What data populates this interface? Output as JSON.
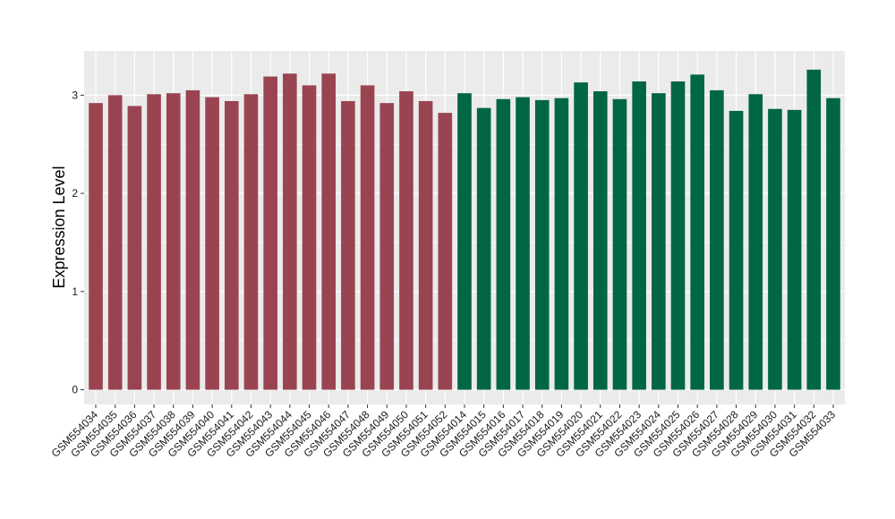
{
  "chart_data": {
    "type": "bar",
    "title": "",
    "xlabel": "",
    "ylabel": "Expression Level",
    "ylim": [
      -0.15,
      3.45
    ],
    "yticks": [
      0,
      1,
      2,
      3
    ],
    "grid": true,
    "legend": "none",
    "panel_background": "#ebebeb",
    "grid_color": "#ffffff",
    "categories": [
      "GSM554034",
      "GSM554035",
      "GSM554036",
      "GSM554037",
      "GSM554038",
      "GSM554039",
      "GSM554040",
      "GSM554041",
      "GSM554042",
      "GSM554043",
      "GSM554044",
      "GSM554045",
      "GSM554046",
      "GSM554047",
      "GSM554048",
      "GSM554049",
      "GSM554050",
      "GSM554051",
      "GSM554052",
      "GSM554014",
      "GSM554015",
      "GSM554016",
      "GSM554017",
      "GSM554018",
      "GSM554019",
      "GSM554020",
      "GSM554021",
      "GSM554022",
      "GSM554023",
      "GSM554024",
      "GSM554025",
      "GSM554026",
      "GSM554027",
      "GSM554028",
      "GSM554029",
      "GSM554030",
      "GSM554031",
      "GSM554032",
      "GSM554033"
    ],
    "values": [
      2.92,
      3.0,
      2.89,
      3.01,
      3.02,
      3.05,
      2.98,
      2.94,
      3.01,
      3.19,
      3.22,
      3.1,
      3.22,
      2.94,
      3.1,
      2.92,
      3.04,
      2.94,
      2.82,
      3.02,
      2.87,
      2.96,
      2.98,
      2.95,
      2.97,
      3.13,
      3.04,
      2.96,
      3.14,
      3.02,
      3.14,
      3.21,
      3.05,
      2.84,
      3.01,
      2.86,
      2.85,
      3.26,
      2.97
    ],
    "group_colors": [
      "#9a4452",
      "#006644"
    ],
    "group_sizes": [
      19,
      20
    ]
  }
}
